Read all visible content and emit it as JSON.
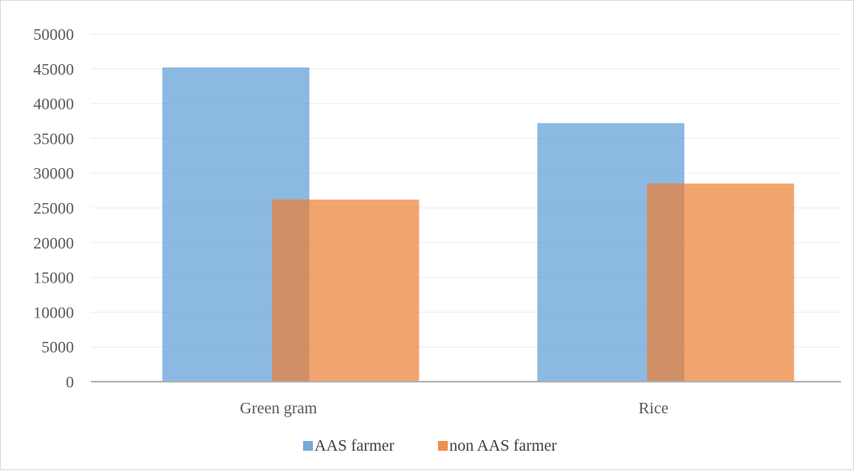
{
  "chart_data": {
    "type": "bar",
    "categories": [
      "Green gram",
      "Rice"
    ],
    "series": [
      {
        "name": "AAS farmer",
        "values": [
          45200,
          37200
        ],
        "color": "#5b9bd5"
      },
      {
        "name": "non AAS farmer",
        "values": [
          26200,
          28500
        ],
        "color": "#ed7d31"
      }
    ],
    "ylim": [
      0,
      50000
    ],
    "yticks": [
      0,
      5000,
      10000,
      15000,
      20000,
      25000,
      30000,
      35000,
      40000,
      45000,
      50000
    ],
    "grid": true,
    "legend_position": "bottom",
    "overlapping_bars": true,
    "bar_opacity": 0.7,
    "gridline_color": "#ececec",
    "axis_color": "#b0b0b0"
  }
}
